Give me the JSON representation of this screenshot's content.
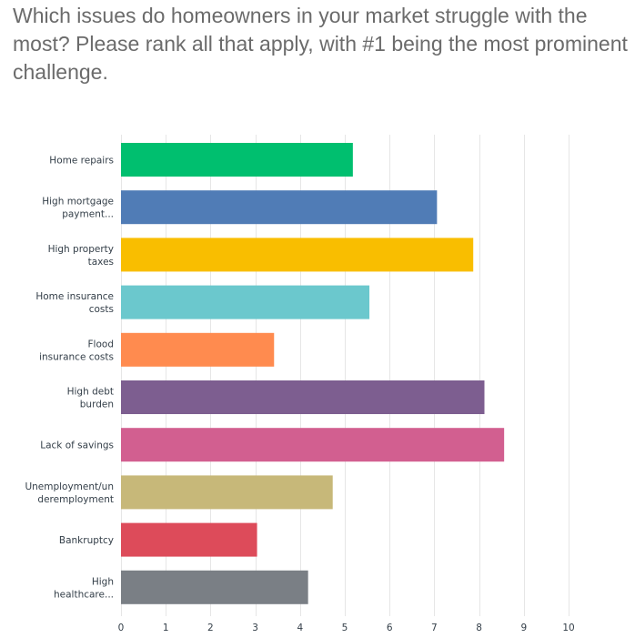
{
  "question": "Which issues do homeowners in your market struggle with the most? Please rank all that apply, with #1 being the most prominent challenge.",
  "chart_data": {
    "type": "bar",
    "orientation": "horizontal",
    "categories": [
      [
        "Home repairs"
      ],
      [
        "High mortgage",
        "payment..."
      ],
      [
        "High property",
        "taxes"
      ],
      [
        "Home insurance",
        "costs"
      ],
      [
        "Flood",
        "insurance costs"
      ],
      [
        "High debt",
        "burden"
      ],
      [
        "Lack of savings"
      ],
      [
        "Unemployment/un",
        "deremployment"
      ],
      [
        "Bankruptcy"
      ],
      [
        "High",
        "healthcare..."
      ]
    ],
    "values": [
      5.18,
      7.06,
      7.87,
      5.55,
      3.42,
      8.12,
      8.56,
      4.73,
      3.04,
      4.18
    ],
    "colors": [
      "#00bf6f",
      "#507cb6",
      "#f9be00",
      "#6bc8cd",
      "#ff8b4f",
      "#7d5e90",
      "#d25f90",
      "#c7b879",
      "#dd4b5a",
      "#7a7f85"
    ],
    "xlim": [
      0,
      10
    ],
    "xticks": [
      "0",
      "1",
      "2",
      "3",
      "4",
      "5",
      "6",
      "7",
      "8",
      "9",
      "10"
    ],
    "grid": true
  }
}
